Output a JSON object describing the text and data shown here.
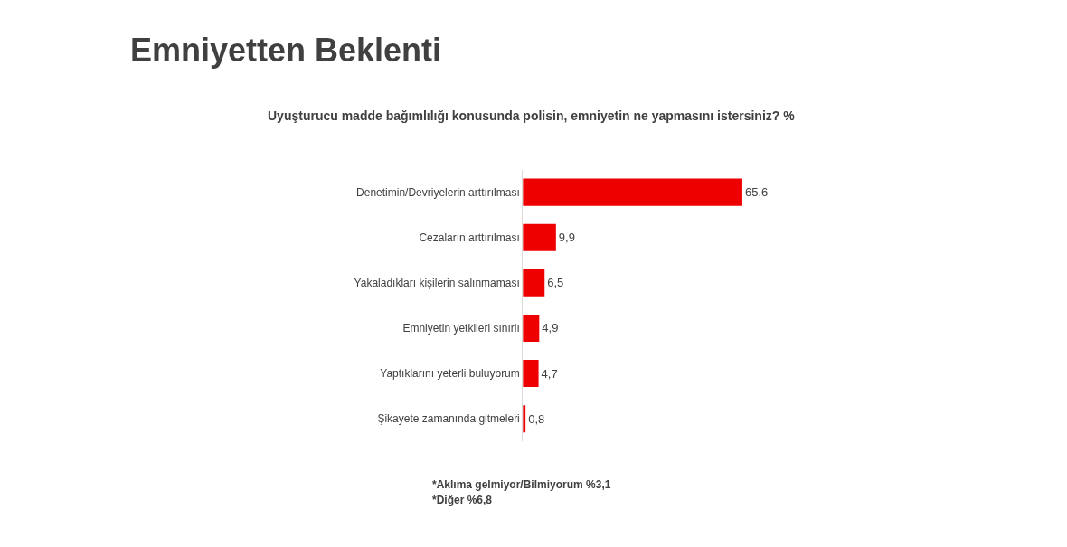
{
  "chart_data": {
    "type": "bar",
    "orientation": "horizontal",
    "title": "Emniyetten Beklenti",
    "subtitle": "Uyuşturucu madde bağımlılığı konusunda polisin, emniyetin ne yapmasını istersiniz? %",
    "categories": [
      "Denetimin/Devriyelerin arttırılması",
      "Cezaların arttırılması",
      "Yakaladıkları kişilerin salınmaması",
      "Emniyetin yetkileri sınırlı",
      "Yaptıklarını yeterli buluyorum",
      "Şikayete zamanında gitmeleri"
    ],
    "values": [
      65.6,
      9.9,
      6.5,
      4.9,
      4.7,
      0.8
    ],
    "value_labels": [
      "65,6",
      "9,9",
      "6,5",
      "4,9",
      "4,7",
      "0,8"
    ],
    "color": "#ee0000",
    "annotations": [
      "*Aklıma gelmiyor/Bilmiyorum %3,1",
      "*Diğer %6,8"
    ]
  }
}
